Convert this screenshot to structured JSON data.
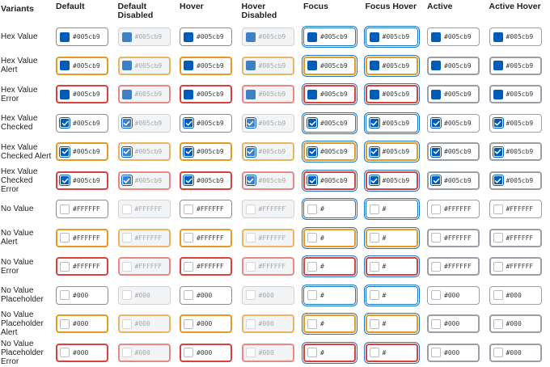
{
  "headers": [
    "Variants",
    "Default",
    "Default\nDisabled",
    "Hover",
    "Hover\nDisabled",
    "Focus",
    "Focus Hover",
    "Active",
    "Active Hover"
  ],
  "states": [
    "default",
    "default-disabled",
    "hover",
    "hover-disabled",
    "focus",
    "focus-hover",
    "active",
    "active-hover"
  ],
  "colors": {
    "swatch_fill": "#005cb9",
    "alert_border": "#e49b22",
    "error_border": "#d8413d",
    "focus_ring": "#1a77c9",
    "disabled_bg": "#f3f4f5"
  },
  "rows": [
    {
      "label": "Hex Value",
      "kind": "fill",
      "status": "none",
      "value": "#005cb9",
      "focus_value": "#005cb9"
    },
    {
      "label": "Hex Value\nAlert",
      "kind": "fill",
      "status": "alert",
      "value": "#005cb9",
      "focus_value": "#005cb9"
    },
    {
      "label": "Hex Value\nError",
      "kind": "fill",
      "status": "error",
      "value": "#005cb9",
      "focus_value": "#005cb9"
    },
    {
      "label": "Hex Value\nChecked",
      "kind": "checked",
      "status": "none",
      "value": "#005cb9",
      "focus_value": "#005cb9"
    },
    {
      "label": "Hex Value\nChecked Alert",
      "kind": "checked",
      "status": "alert",
      "value": "#005cb9",
      "focus_value": "#005cb9"
    },
    {
      "label": "Hex Value\nChecked\nError",
      "kind": "checked",
      "status": "error",
      "value": "#005cb9",
      "focus_value": "#005cb9"
    },
    {
      "label": "No Value",
      "kind": "empty",
      "status": "none",
      "value": "#FFFFFF",
      "focus_value": "#"
    },
    {
      "label": "No Value\nAlert",
      "kind": "empty",
      "status": "alert",
      "value": "#FFFFFF",
      "focus_value": "#"
    },
    {
      "label": "No Value\nError",
      "kind": "empty",
      "status": "error",
      "value": "#FFFFFF",
      "focus_value": "#"
    },
    {
      "label": "No Value\nPlaceholder",
      "kind": "empty",
      "status": "none",
      "value": "#000",
      "focus_value": "#"
    },
    {
      "label": "No Value\nPlaceholder\nAlert",
      "kind": "empty",
      "status": "alert",
      "value": "#000",
      "focus_value": "#"
    },
    {
      "label": "No Value\nPlaceholder\nError",
      "kind": "empty",
      "status": "error",
      "value": "#000",
      "focus_value": "#"
    }
  ]
}
